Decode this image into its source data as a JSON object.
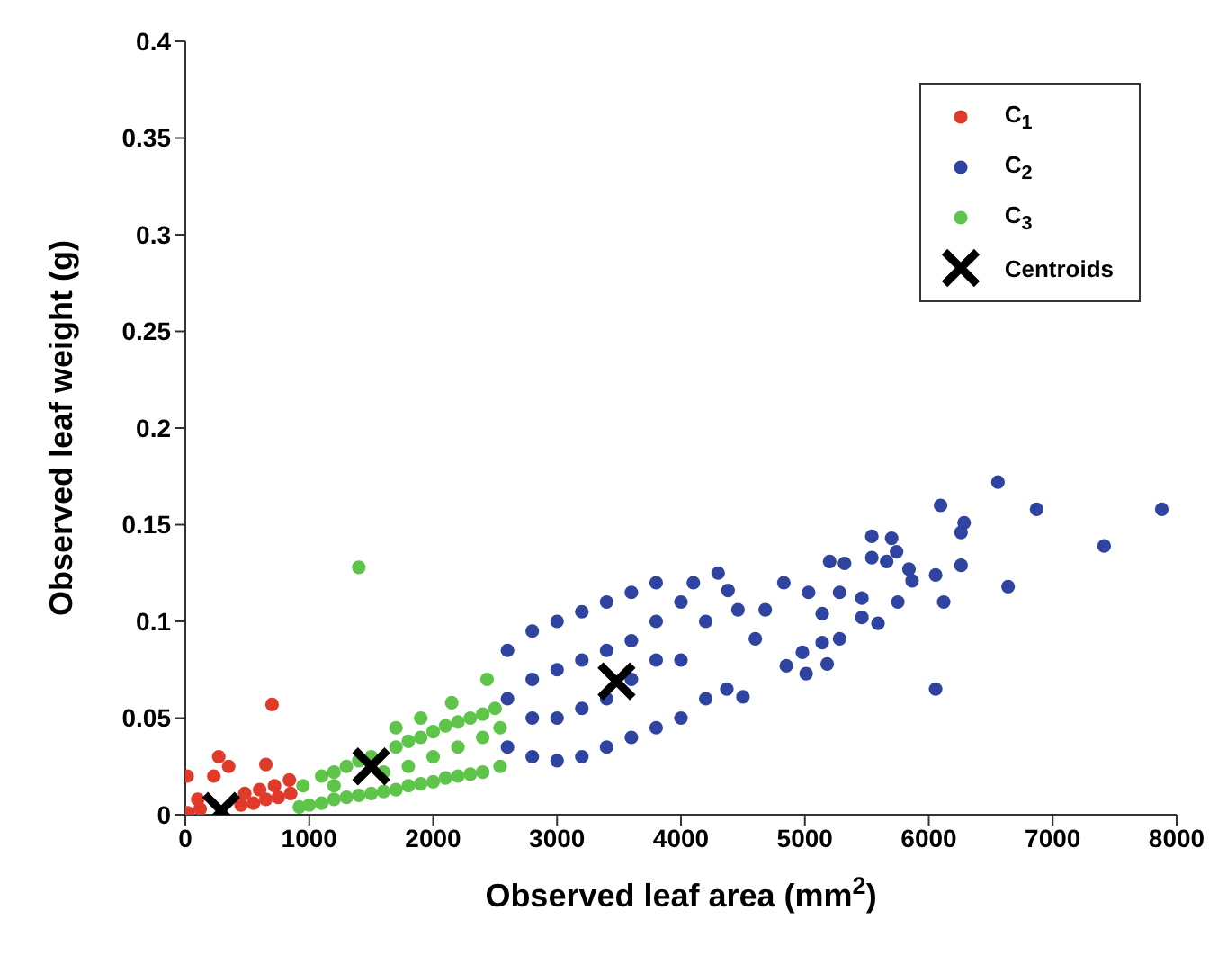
{
  "chart_data": {
    "type": "scatter",
    "xlabel": "Observed leaf area (mm$^{2}$)",
    "ylabel": "Observed leaf weight (g)",
    "xlim": [
      0,
      8000
    ],
    "xticks": [
      0,
      1000,
      2000,
      3000,
      4000,
      5000,
      6000,
      7000,
      8000
    ],
    "ylim": [
      0,
      0.4
    ],
    "yticks": [
      0,
      0.05,
      0.1,
      0.15,
      0.2,
      0.25,
      0.3,
      0.35,
      0.4
    ],
    "legend": "top right",
    "marker": "circle",
    "grid": false,
    "series": [
      {
        "name": "C$_{1}$",
        "color": "#e03a2a",
        "x": [
          20,
          120,
          450,
          550,
          650,
          750,
          850,
          100,
          480,
          600,
          720,
          840,
          15,
          270,
          350,
          230,
          650,
          700
        ],
        "values": [
          0.001,
          0.003,
          0.005,
          0.006,
          0.008,
          0.009,
          0.011,
          0.008,
          0.011,
          0.013,
          0.015,
          0.018,
          0.02,
          0.03,
          0.025,
          0.02,
          0.026,
          0.057
        ]
      },
      {
        "name": "C$_{2}$",
        "color": "#2e44a0",
        "x": [
          2600,
          2600,
          2600,
          2800,
          2800,
          3000,
          3000,
          3200,
          3200,
          3400,
          3400,
          3600,
          3600,
          3800,
          3800,
          4000,
          4000,
          4200,
          4200,
          2800,
          2800,
          3000,
          3000,
          3200,
          3200,
          3400,
          3400,
          3600,
          3600,
          3800,
          3800,
          4000,
          4100,
          4300,
          6558,
          7880,
          6870,
          7415,
          6095,
          6285,
          6260,
          6260,
          6640,
          6120,
          6055,
          6055,
          5865,
          5840,
          5540,
          5700,
          5740,
          5540,
          5660,
          5200,
          5320,
          4830,
          4380,
          5460,
          5280,
          5750,
          5030,
          5140,
          5460,
          5590,
          4680,
          5280,
          5140,
          4980,
          4850,
          4500,
          4370,
          5010,
          5180,
          4600,
          4460
        ],
        "values": [
          0.035,
          0.06,
          0.085,
          0.03,
          0.095,
          0.028,
          0.1,
          0.03,
          0.105,
          0.035,
          0.11,
          0.04,
          0.115,
          0.045,
          0.12,
          0.05,
          0.11,
          0.06,
          0.1,
          0.05,
          0.07,
          0.05,
          0.075,
          0.055,
          0.08,
          0.06,
          0.085,
          0.07,
          0.09,
          0.08,
          0.1,
          0.08,
          0.12,
          0.125,
          0.172,
          0.158,
          0.158,
          0.139,
          0.16,
          0.151,
          0.146,
          0.129,
          0.118,
          0.11,
          0.065,
          0.124,
          0.121,
          0.127,
          0.144,
          0.143,
          0.136,
          0.133,
          0.131,
          0.131,
          0.13,
          0.12,
          0.116,
          0.112,
          0.115,
          0.11,
          0.115,
          0.104,
          0.102,
          0.099,
          0.106,
          0.091,
          0.089,
          0.084,
          0.077,
          0.061,
          0.065,
          0.073,
          0.078,
          0.091,
          0.106
        ]
      },
      {
        "name": "C$_{3}$",
        "color": "#5ec44a",
        "x": [
          920,
          1000,
          1100,
          1200,
          1300,
          1400,
          1500,
          1600,
          1700,
          1800,
          1900,
          2000,
          2100,
          2200,
          2300,
          2400,
          2500,
          2540,
          950,
          1100,
          1200,
          1300,
          1400,
          1500,
          1600,
          1700,
          1800,
          1900,
          2000,
          2100,
          2200,
          2300,
          2400,
          2500,
          2540,
          1200,
          1400,
          1600,
          1800,
          2000,
          2200,
          2400,
          1400,
          2435,
          1700,
          1900,
          2150
        ],
        "values": [
          0.004,
          0.005,
          0.006,
          0.008,
          0.009,
          0.01,
          0.011,
          0.012,
          0.013,
          0.015,
          0.016,
          0.017,
          0.019,
          0.02,
          0.021,
          0.022,
          null,
          0.025,
          0.015,
          0.02,
          0.022,
          0.025,
          0.028,
          0.03,
          null,
          0.035,
          0.038,
          0.04,
          0.043,
          0.046,
          0.048,
          0.05,
          0.052,
          0.055,
          0.045,
          0.015,
          null,
          0.022,
          0.025,
          0.03,
          0.035,
          0.04,
          0.128,
          0.07,
          0.045,
          0.05,
          0.058
        ]
      },
      {
        "name": "Centroids",
        "color": "#000000",
        "marker": "cross",
        "x": [
          290,
          1500,
          3480
        ],
        "values": [
          0.002,
          0.025,
          0.069
        ]
      }
    ]
  }
}
